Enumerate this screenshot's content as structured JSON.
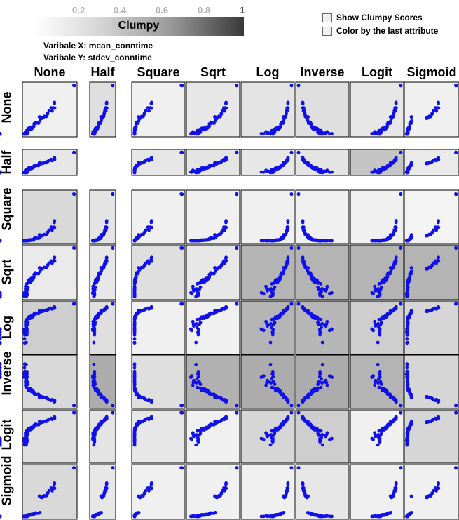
{
  "legend": {
    "title": "Clumpy",
    "ticks": [
      "0.2",
      "0.4",
      "0.6",
      "0.8",
      "1"
    ]
  },
  "variables": {
    "x_label": "Varibale X: mean_conntime",
    "y_label": "Varibale Y: stdev_conntime"
  },
  "options": {
    "show_scores": "Show Clumpy Scores",
    "color_by_last": "Color by the last attribute"
  },
  "point_color": "#1010e8",
  "chart_data": {
    "type": "scatter",
    "columns": [
      "None",
      "Half",
      "Square",
      "Sqrt",
      "Log",
      "Inverse",
      "Logit",
      "Sigmoid"
    ],
    "rows": [
      "None",
      "Half",
      "Square",
      "Sqrt",
      "Log",
      "Inverse",
      "Logit",
      "Sigmoid"
    ],
    "clumpy_scores": [
      [
        0.05,
        0.15,
        0.05,
        0.1,
        0.12,
        0.15,
        0.1,
        0.05
      ],
      [
        0.1,
        null,
        0.1,
        0.12,
        0.1,
        0.12,
        0.3,
        0.08
      ],
      [
        0.18,
        0.12,
        0.05,
        0.05,
        0.05,
        0.05,
        0.05,
        0.03
      ],
      [
        0.08,
        0.1,
        0.15,
        0.1,
        0.4,
        0.4,
        0.4,
        0.4
      ],
      [
        0.25,
        0.15,
        0.05,
        0.05,
        0.4,
        0.38,
        0.25,
        0.2
      ],
      [
        0.18,
        0.45,
        0.15,
        0.42,
        0.45,
        0.45,
        0.4,
        0.2
      ],
      [
        0.15,
        0.12,
        0.1,
        0.05,
        0.2,
        0.25,
        0.05,
        0.2
      ],
      [
        0.18,
        0.1,
        0.05,
        0.05,
        0.05,
        0.1,
        0.05,
        0.05
      ]
    ]
  }
}
